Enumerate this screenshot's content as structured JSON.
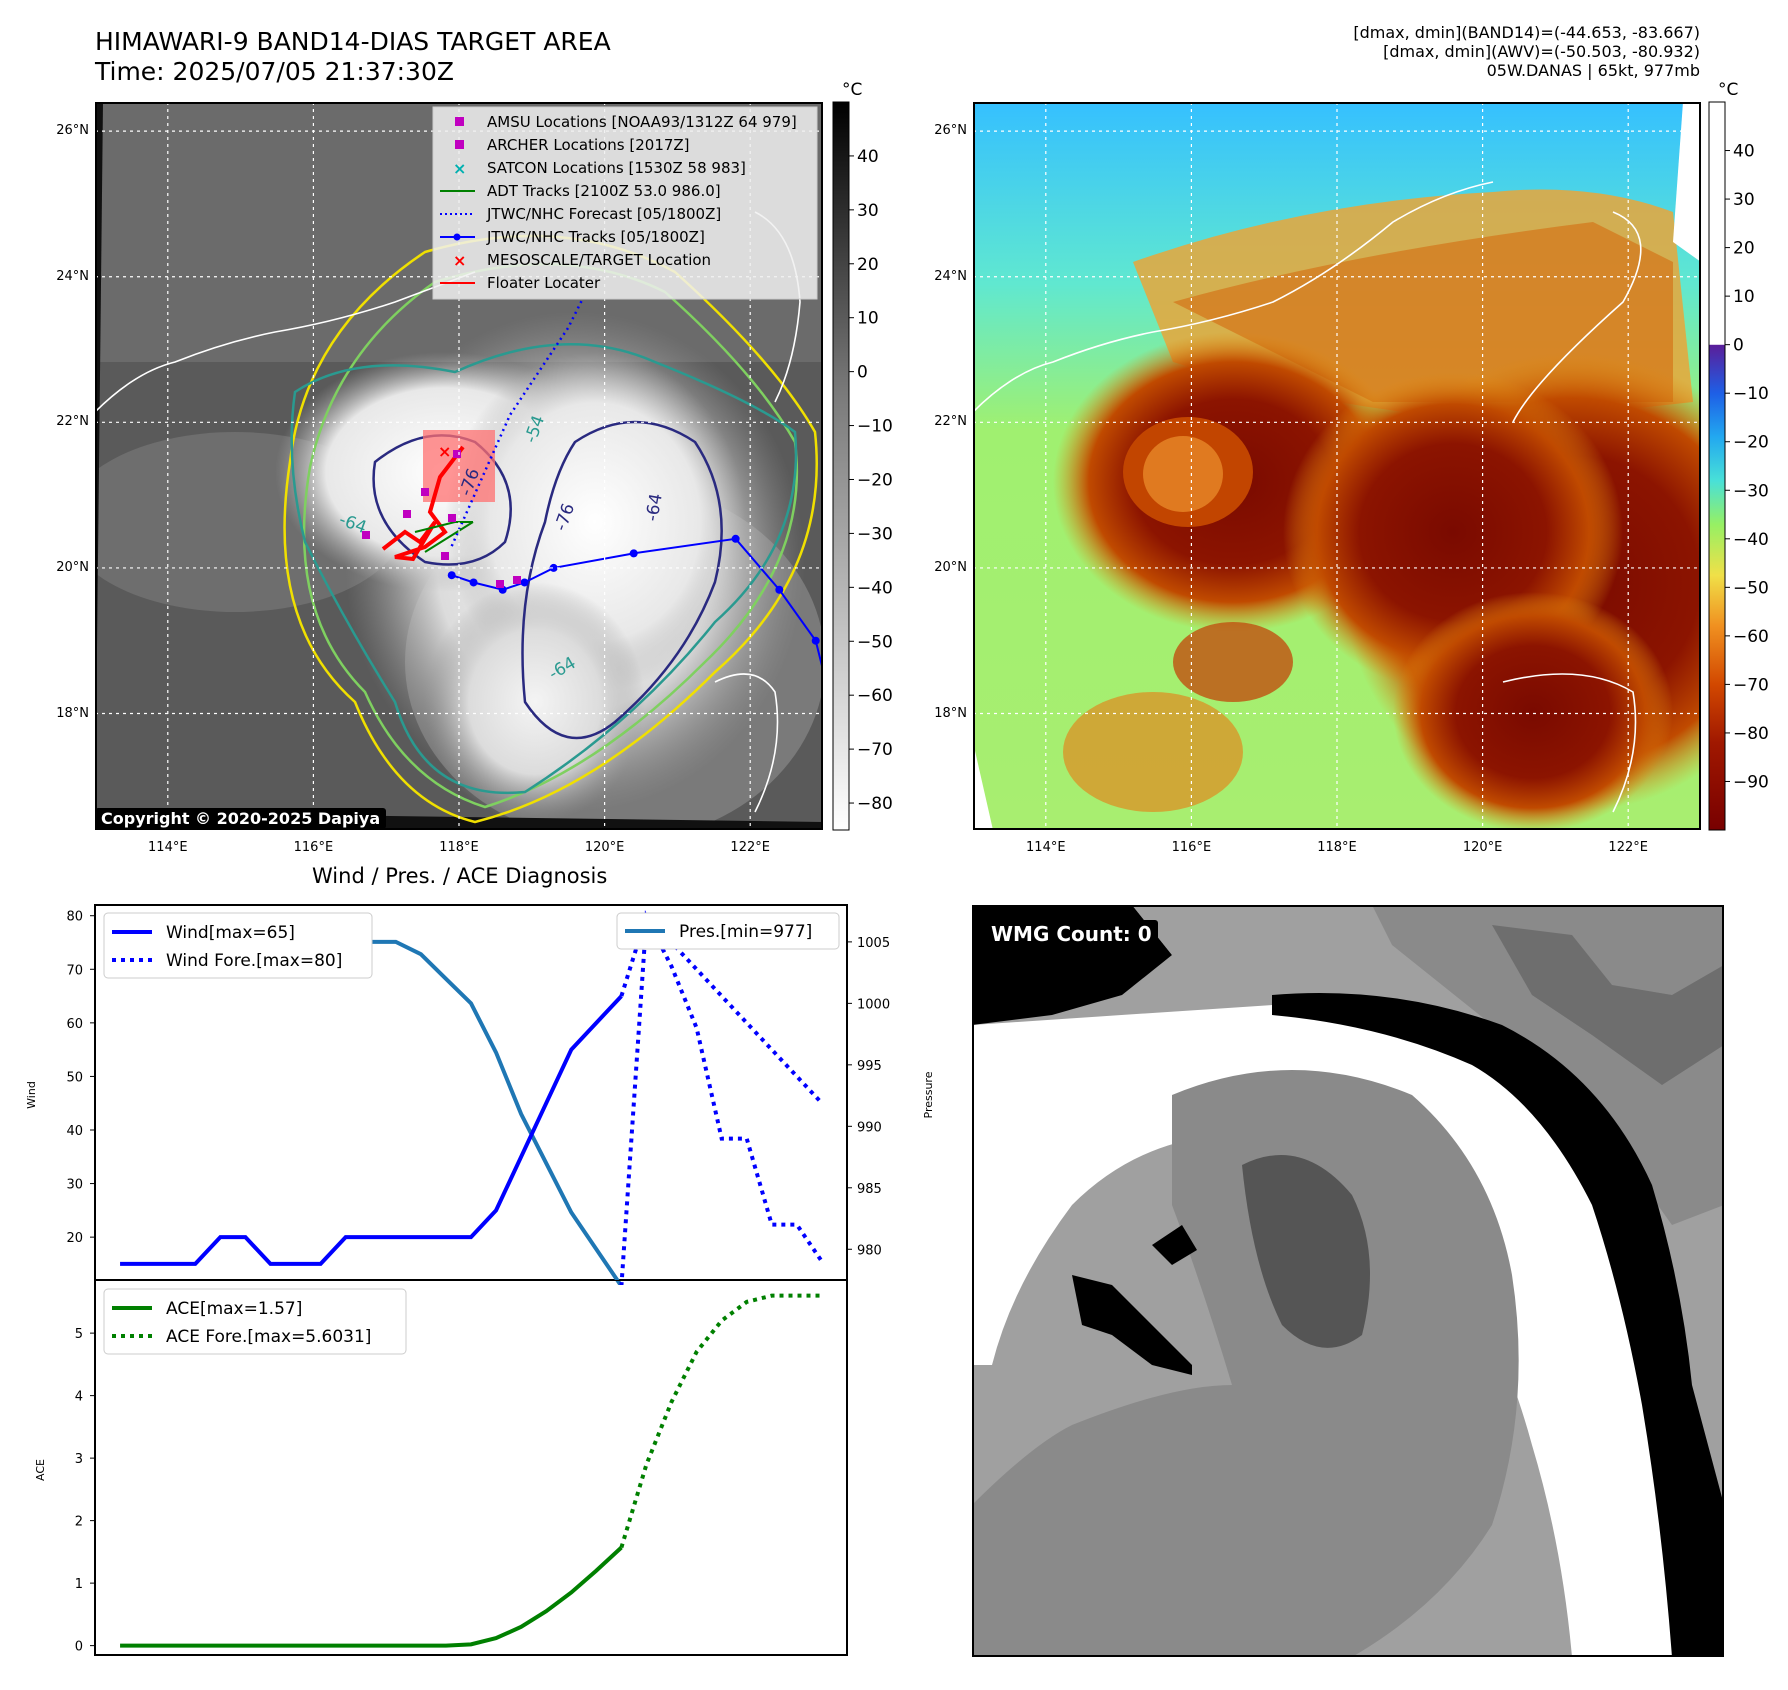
{
  "header": {
    "title_line1": "HIMAWARI-9 BAND14-DIAS TARGET AREA",
    "title_line2": "Time: 2025/07/05 21:37:30Z",
    "right_line1": "[dmax, dmin](BAND14)=(-44.653, -83.667)",
    "right_line2": "[dmax, dmin](AWV)=(-50.503, -80.932)",
    "right_line3": "05W.DANAS | 65kt, 977mb"
  },
  "map_axes": {
    "lat_ticks": [
      "26°N",
      "24°N",
      "22°N",
      "20°N",
      "18°N"
    ],
    "lat_values": [
      26,
      24,
      22,
      20,
      18
    ],
    "lon_ticks": [
      "114°E",
      "116°E",
      "118°E",
      "120°E",
      "122°E"
    ],
    "lon_values": [
      114,
      116,
      118,
      120,
      122
    ],
    "lon_range": [
      113.0,
      123.0
    ],
    "lat_range": [
      16.4,
      26.4
    ]
  },
  "ir_panel": {
    "copyright": "Copyright © 2020-2025 Dapiya",
    "contour_labels": [
      "-64",
      "-76",
      "-54",
      "-76",
      "-64",
      "-64"
    ],
    "legend": [
      {
        "label": "AMSU Locations [NOAA93/1312Z 64 979]",
        "color": "#c000c0",
        "marker": "square"
      },
      {
        "label": "ARCHER Locations [2017Z]",
        "color": "#c000c0",
        "marker": "square"
      },
      {
        "label": "SATCON Locations [1530Z 58 983]",
        "color": "#00b0b0",
        "marker": "x"
      },
      {
        "label": "ADT Tracks [2100Z 53.0 986.0]",
        "color": "#008000",
        "marker": "line"
      },
      {
        "label": "JTWC/NHC Forecast [05/1800Z]",
        "color": "#0000ff",
        "marker": "dotted"
      },
      {
        "label": "JTWC/NHC Tracks [05/1800Z]",
        "color": "#0000ff",
        "marker": "line-dot"
      },
      {
        "label": "MESOSCALE/TARGET Location",
        "color": "#ff0000",
        "marker": "x"
      },
      {
        "label": "Floater Locater",
        "color": "#ff0000",
        "marker": "line"
      }
    ],
    "track_jtwc": [
      [
        123.1,
        18.2
      ],
      [
        122.9,
        19.0
      ],
      [
        122.4,
        19.7
      ],
      [
        121.8,
        20.4
      ],
      [
        120.4,
        20.2
      ],
      [
        119.3,
        20.0
      ],
      [
        118.9,
        19.8
      ],
      [
        118.6,
        19.7
      ],
      [
        118.2,
        19.8
      ],
      [
        117.9,
        19.9
      ]
    ],
    "forecast_jtwc": [
      [
        117.9,
        20.3
      ],
      [
        118.7,
        22.1
      ],
      [
        119.5,
        23.3
      ],
      [
        119.7,
        23.7
      ]
    ]
  },
  "colorbar_ir": {
    "unit": "°C",
    "ticks": [
      "40",
      "30",
      "20",
      "10",
      "0",
      "−10",
      "−20",
      "−30",
      "−40",
      "−50",
      "−60",
      "−70",
      "−80"
    ],
    "values": [
      40,
      30,
      20,
      10,
      0,
      -10,
      -20,
      -30,
      -40,
      -50,
      -60,
      -70,
      -80
    ],
    "range": [
      -85,
      50
    ]
  },
  "colorbar_awv": {
    "unit": "°C",
    "ticks": [
      "40",
      "30",
      "20",
      "10",
      "0",
      "−10",
      "−20",
      "−30",
      "−40",
      "−50",
      "−60",
      "−70",
      "−80",
      "−90"
    ],
    "values": [
      40,
      30,
      20,
      10,
      0,
      -10,
      -20,
      -30,
      -40,
      -50,
      -60,
      -70,
      -80,
      -90
    ],
    "range": [
      -100,
      50
    ]
  },
  "wind_panel": {
    "title": "Wind / Pres. / ACE Diagnosis",
    "ylabel_left": "Wind",
    "ylabel_right": "Pressure",
    "wind_ticks": [
      20,
      30,
      40,
      50,
      60,
      70,
      80
    ],
    "wind_range": [
      12,
      82
    ],
    "pres_ticks": [
      980,
      985,
      990,
      995,
      1000,
      1005
    ],
    "pres_range": [
      977.5,
      1008
    ],
    "legend_left": [
      "Wind[max=65]",
      "Wind Fore.[max=80]"
    ],
    "legend_right": [
      "Pres.[min=977]"
    ],
    "wind_x": [
      0,
      1,
      2,
      3,
      4,
      5,
      6,
      7,
      8,
      9,
      10,
      11,
      12,
      13,
      14,
      15,
      16,
      17,
      18,
      19,
      20
    ],
    "wind_values": [
      15,
      15,
      15,
      15,
      20,
      20,
      15,
      15,
      15,
      20,
      20,
      20,
      20,
      20,
      20,
      25,
      35,
      45,
      55,
      60,
      65
    ],
    "wind_fore_x": [
      20,
      21,
      22,
      23,
      24,
      25,
      26,
      27,
      28
    ],
    "wind_fore_values": [
      65,
      80,
      75,
      70,
      65,
      60,
      55,
      50,
      45
    ],
    "pres_x": [
      0,
      1,
      2,
      3,
      4,
      5,
      6,
      7,
      8,
      9,
      10,
      11,
      12,
      13,
      14,
      15,
      16,
      17,
      18,
      19,
      20
    ],
    "pres_values": [
      1007,
      1007,
      1006,
      1005,
      1006,
      1006,
      1006,
      1006,
      1006,
      1006,
      1005,
      1005,
      1004,
      1002,
      1000,
      996,
      991,
      987,
      983,
      980,
      977
    ],
    "pres_fore_x": [
      20,
      21,
      22,
      23,
      24,
      25,
      26,
      27,
      28
    ],
    "pres_fore_values": [
      977,
      1007,
      1003,
      998,
      989,
      989,
      982,
      982,
      979
    ],
    "x_range": [
      -1,
      29
    ]
  },
  "ace_panel": {
    "ylabel": "ACE",
    "ace_ticks": [
      0,
      1,
      2,
      3,
      4,
      5
    ],
    "ace_range": [
      -0.15,
      5.85
    ],
    "legend": [
      "ACE[max=1.57]",
      "ACE Fore.[max=5.6031]"
    ],
    "ace_x": [
      0,
      1,
      2,
      3,
      4,
      5,
      6,
      7,
      8,
      9,
      10,
      11,
      12,
      13,
      14,
      15,
      16,
      17,
      18,
      19,
      20
    ],
    "ace_values": [
      0,
      0,
      0,
      0,
      0,
      0,
      0,
      0,
      0,
      0,
      0,
      0,
      0,
      0,
      0.02,
      0.12,
      0.3,
      0.55,
      0.85,
      1.2,
      1.57
    ],
    "ace_fore_x": [
      20,
      21,
      22,
      23,
      24,
      25,
      26,
      27,
      28
    ],
    "ace_fore_values": [
      1.57,
      2.9,
      3.9,
      4.7,
      5.2,
      5.5,
      5.6,
      5.6,
      5.6
    ],
    "x_range": [
      -1,
      29
    ]
  },
  "wmg_panel": {
    "label": "WMG Count: 0"
  }
}
